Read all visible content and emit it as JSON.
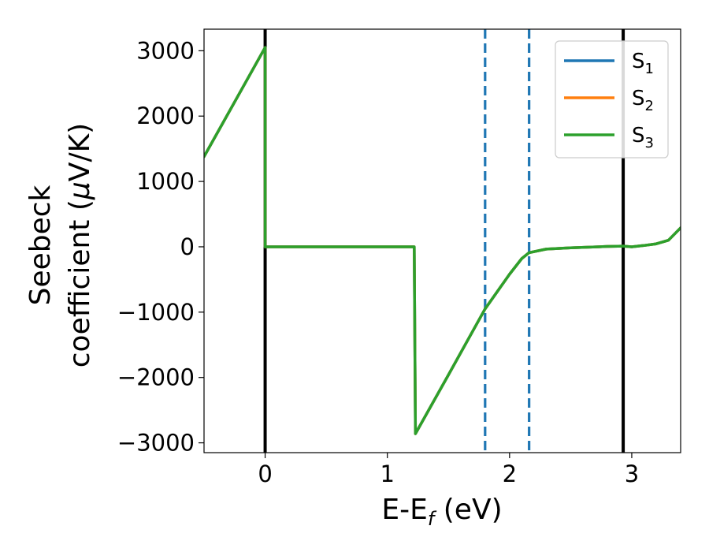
{
  "chart_data": {
    "type": "line",
    "xlabel": "E-E",
    "xlabel_sub": "f",
    "xlabel_unit": " (eV)",
    "ylabel_line1": "Seebeck",
    "ylabel_line2": "coefficient  (",
    "ylabel_mu": "μ",
    "ylabel_unit": "V/K)",
    "xlim": [
      -0.5,
      3.4
    ],
    "ylim": [
      -3150,
      3330
    ],
    "x_ticks": [
      0,
      1,
      2,
      3
    ],
    "x_tick_labels": [
      "0",
      "1",
      "2",
      "3"
    ],
    "y_ticks": [
      3000,
      2000,
      1000,
      0,
      -1000,
      -2000,
      -3000
    ],
    "y_tick_labels": [
      "3000",
      "2000",
      "1000",
      "0",
      "−1000",
      "−2000",
      "−3000"
    ],
    "grid": false,
    "legend_position": "top-right",
    "series": [
      {
        "name": "S",
        "sub": "1",
        "color": "#1f77b4",
        "x": [
          -0.5,
          0.0,
          0.0,
          1.22,
          1.22,
          1.23,
          1.5,
          1.8,
          2.0,
          2.1,
          2.16,
          2.3,
          2.5,
          2.8,
          2.93,
          3.0,
          3.1,
          3.2,
          3.3,
          3.4
        ],
        "y": [
          1380,
          3050,
          0,
          0,
          -10,
          -2860,
          -1960,
          -950,
          -420,
          -180,
          -90,
          -35,
          -15,
          5,
          10,
          0,
          20,
          45,
          100,
          290
        ]
      },
      {
        "name": "S",
        "sub": "2",
        "color": "#ff7f0e",
        "x": [
          -0.5,
          0.0,
          0.0,
          1.22,
          1.22,
          1.23,
          1.5,
          1.8,
          2.0,
          2.1,
          2.16,
          2.3,
          2.5,
          2.8,
          2.93,
          3.0,
          3.1,
          3.2,
          3.3,
          3.4
        ],
        "y": [
          1380,
          3050,
          0,
          0,
          -10,
          -2860,
          -1960,
          -950,
          -420,
          -180,
          -90,
          -35,
          -15,
          5,
          10,
          0,
          20,
          45,
          100,
          290
        ]
      },
      {
        "name": "S",
        "sub": "3",
        "color": "#2ca02c",
        "x": [
          -0.5,
          0.0,
          0.0,
          1.22,
          1.22,
          1.23,
          1.5,
          1.8,
          2.0,
          2.1,
          2.16,
          2.3,
          2.5,
          2.8,
          2.93,
          3.0,
          3.1,
          3.2,
          3.3,
          3.4
        ],
        "y": [
          1380,
          3050,
          0,
          0,
          -10,
          -2860,
          -1960,
          -950,
          -420,
          -180,
          -90,
          -35,
          -15,
          5,
          10,
          0,
          20,
          45,
          100,
          290
        ]
      }
    ],
    "vertical_lines": [
      {
        "x": 0.0,
        "color": "#000000",
        "style": "solid"
      },
      {
        "x": 2.93,
        "color": "#000000",
        "style": "solid"
      },
      {
        "x": 1.8,
        "color": "#1f77b4",
        "style": "dashed"
      },
      {
        "x": 2.16,
        "color": "#1f77b4",
        "style": "dashed"
      }
    ]
  }
}
